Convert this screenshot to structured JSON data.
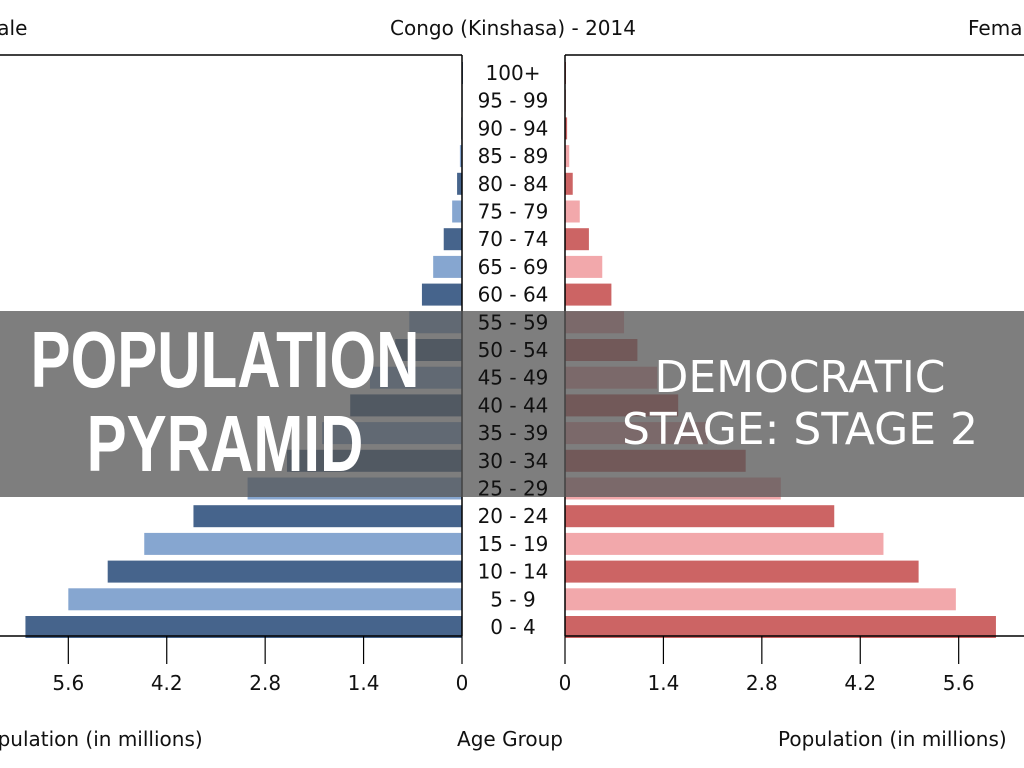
{
  "chart_data": {
    "type": "bar",
    "subtype": "population-pyramid",
    "title": "Congo (Kinshasa) - 2014",
    "left_title": "Male",
    "right_title": "Female",
    "xlabel_left": "Population (in millions)",
    "xlabel_center": "Age Group",
    "xlabel_right": "Population (in millions)",
    "xlim": [
      0,
      6.3
    ],
    "xticks": [
      "0",
      "1.4",
      "2.8",
      "4.2",
      "5.6"
    ],
    "xtick_values": [
      0,
      1.4,
      2.8,
      4.2,
      5.6
    ],
    "categories": [
      "0 - 4",
      "5 - 9",
      "10 - 14",
      "15 - 19",
      "20 - 24",
      "25 - 29",
      "30 - 34",
      "35 - 39",
      "40 - 44",
      "45 - 49",
      "50 - 54",
      "55 - 59",
      "60 - 64",
      "65 - 69",
      "70 - 74",
      "75 - 79",
      "80 - 84",
      "85 - 89",
      "90 - 94",
      "95 - 99",
      "100+"
    ],
    "series": [
      {
        "name": "Male",
        "colors": [
          "#46648c",
          "#86a6d0"
        ],
        "values": [
          6.21,
          5.6,
          5.04,
          4.52,
          3.82,
          3.05,
          2.49,
          1.99,
          1.59,
          1.31,
          0.95,
          0.75,
          0.57,
          0.41,
          0.26,
          0.14,
          0.07,
          0.03,
          0.01,
          0.005,
          0.001
        ]
      },
      {
        "name": "Female",
        "colors": [
          "#cc6464",
          "#f2a8ab"
        ],
        "values": [
          6.13,
          5.56,
          5.03,
          4.53,
          3.83,
          3.07,
          2.57,
          2.03,
          1.61,
          1.31,
          1.03,
          0.84,
          0.66,
          0.53,
          0.34,
          0.21,
          0.11,
          0.06,
          0.03,
          0.01,
          0.005
        ]
      }
    ]
  },
  "overlay": {
    "title": "POPULATION PYRAMID",
    "subtitle": "DEMOCRATIC STAGE: STAGE 2"
  }
}
